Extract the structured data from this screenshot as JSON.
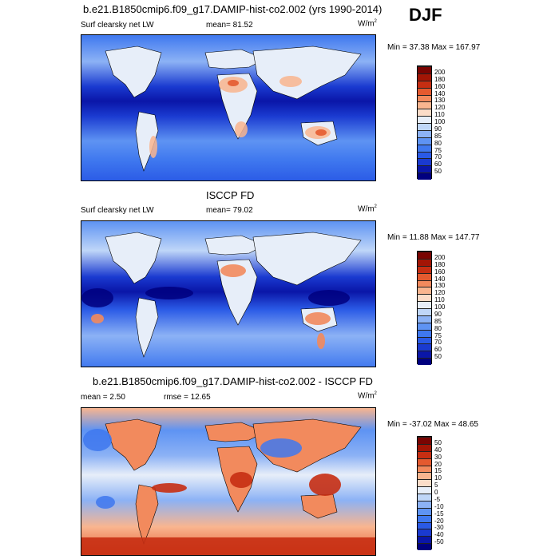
{
  "season": "DJF",
  "panels": [
    {
      "title": "b.e21.B1850cmip6.f09_g17.DAMIP-hist-co2.002 (yrs 1990-2014)",
      "left_label": "Surf clearsky net LW",
      "stat_label": "mean=  81.52",
      "units": "W/m",
      "units_sup": "2",
      "minmax": "Min =  37.38 Max = 167.97"
    },
    {
      "title": "ISCCP FD",
      "left_label": "Surf clearsky net LW",
      "stat_label": "mean=  79.02",
      "units": "W/m",
      "units_sup": "2",
      "minmax": "Min =  11.88 Max = 147.77"
    },
    {
      "title": "b.e21.B1850cmip6.f09_g17.DAMIP-hist-co2.002 - ISCCP FD",
      "left_label": "mean =   2.50",
      "stat_label": "rmse =  12.65",
      "units": "W/m",
      "units_sup": "2",
      "minmax": "Min = -37.02 Max =  48.65"
    }
  ],
  "chart_data": [
    {
      "type": "heatmap",
      "title": "b.e21.B1850cmip6.f09_g17.DAMIP-hist-co2.002 (yrs 1990-2014)",
      "variable": "Surf clearsky net LW",
      "mean": 81.52,
      "min": 37.38,
      "max": 167.97,
      "colorbar_levels": [
        "50",
        "60",
        "70",
        "75",
        "80",
        "85",
        "90",
        "100",
        "110",
        "120",
        "130",
        "140",
        "160",
        "180",
        "200"
      ],
      "colorbar_colors": [
        "#00007f",
        "#0a16a8",
        "#1a3ad0",
        "#2a5ae6",
        "#3f78ef",
        "#5e93f3",
        "#8cb2f5",
        "#bfd6f8",
        "#e7eef9",
        "#fbdcc8",
        "#f9b58f",
        "#f28a5d",
        "#e45a2f",
        "#c62e12",
        "#a31505",
        "#7a0402"
      ]
    },
    {
      "type": "heatmap",
      "title": "ISCCP FD",
      "variable": "Surf clearsky net LW",
      "mean": 79.02,
      "min": 11.88,
      "max": 147.77,
      "colorbar_levels": [
        "50",
        "60",
        "70",
        "75",
        "80",
        "85",
        "90",
        "100",
        "110",
        "120",
        "130",
        "140",
        "160",
        "180",
        "200"
      ],
      "colorbar_colors": [
        "#00007f",
        "#0a16a8",
        "#1a3ad0",
        "#2a5ae6",
        "#3f78ef",
        "#5e93f3",
        "#8cb2f5",
        "#bfd6f8",
        "#e7eef9",
        "#fbdcc8",
        "#f9b58f",
        "#f28a5d",
        "#e45a2f",
        "#c62e12",
        "#a31505",
        "#7a0402"
      ]
    },
    {
      "type": "heatmap",
      "title": "b.e21.B1850cmip6.f09_g17.DAMIP-hist-co2.002 - ISCCP FD",
      "mean": 2.5,
      "rmse": 12.65,
      "min": -37.02,
      "max": 48.65,
      "colorbar_levels": [
        "-50",
        "-40",
        "-30",
        "-20",
        "-15",
        "-10",
        "-5",
        "0",
        "5",
        "10",
        "15",
        "20",
        "30",
        "40",
        "50"
      ],
      "colorbar_colors": [
        "#00007f",
        "#0a16a8",
        "#1a3ad0",
        "#2a5ae6",
        "#3f78ef",
        "#5e93f3",
        "#8cb2f5",
        "#bfd6f8",
        "#e7eef9",
        "#fbdcc8",
        "#f9b58f",
        "#f28a5d",
        "#e45a2f",
        "#c62e12",
        "#a31505",
        "#7a0402"
      ]
    }
  ]
}
